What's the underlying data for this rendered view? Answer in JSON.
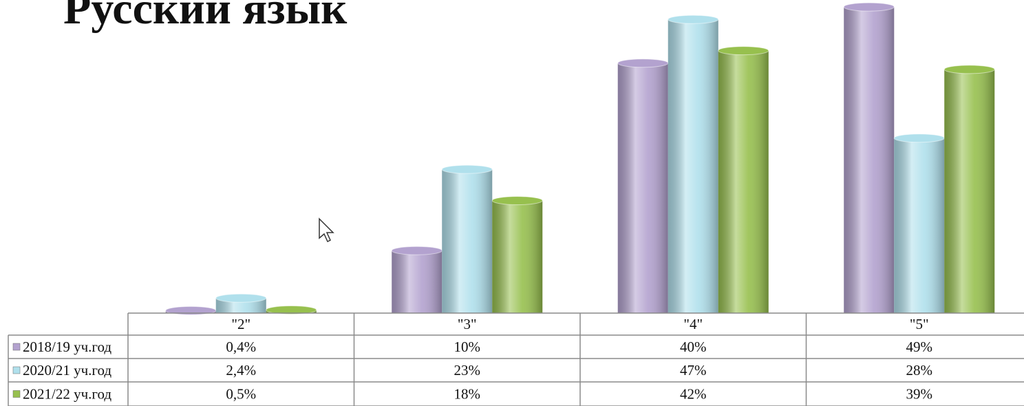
{
  "chart_data": {
    "type": "bar",
    "title": "Русский язык",
    "categories": [
      "\"2\"",
      "\"3\"",
      "\"4\"",
      "\"5\""
    ],
    "series": [
      {
        "name": "2018/19 уч.год",
        "color": "#b3a2cf",
        "values": [
          0.4,
          10,
          40,
          49
        ],
        "value_labels": [
          "0,4%",
          "10%",
          "40%",
          "49%"
        ]
      },
      {
        "name": "2020/21 уч.год",
        "color": "#b0e0ec",
        "values": [
          2.4,
          23,
          47,
          28
        ],
        "value_labels": [
          "2,4%",
          "23%",
          "47%",
          "28%"
        ]
      },
      {
        "name": "2021/22 уч.год",
        "color": "#97c04e",
        "values": [
          0.5,
          18,
          42,
          39
        ],
        "value_labels": [
          "0,5%",
          "18%",
          "42%",
          "39%"
        ]
      }
    ],
    "ylim": [
      0,
      50
    ]
  }
}
